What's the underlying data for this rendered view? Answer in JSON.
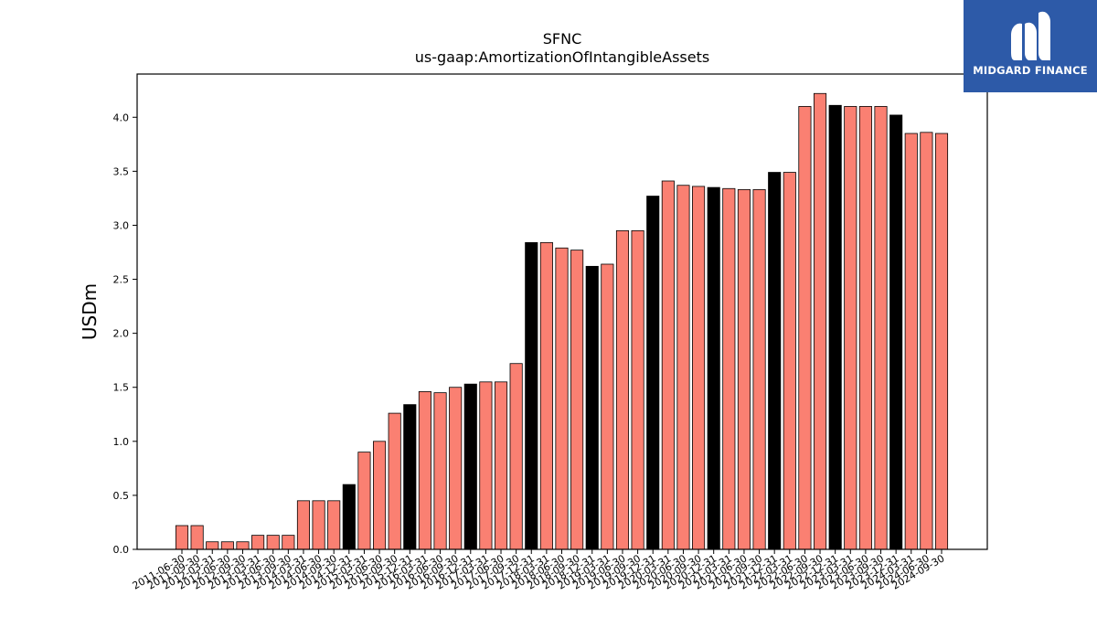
{
  "logo": {
    "text": "MIDGARD FINANCE"
  },
  "chart_data": {
    "type": "bar",
    "title": "SFNC",
    "subtitle": "us-gaap:AmortizationOfIntangibleAssets",
    "xlabel": "",
    "ylabel": "USDm",
    "ylim": [
      0,
      4.4
    ],
    "yticks": [
      "0.0",
      "0.5",
      "1.0",
      "1.5",
      "2.0",
      "2.5",
      "3.0",
      "3.5",
      "4.0"
    ],
    "grid": false,
    "colors": {
      "quarter": "#fa8072",
      "year_end": "#000000",
      "edge": "#000000"
    },
    "categories": [
      "2011-06-30",
      "2011-09-30",
      "2012-03-31",
      "2012-06-30",
      "2012-09-30",
      "2013-03-31",
      "2013-06-30",
      "2013-09-30",
      "2014-03-31",
      "2014-06-30",
      "2014-09-30",
      "2014-12-31",
      "2015-03-31",
      "2015-06-30",
      "2015-09-30",
      "2015-12-31",
      "2016-03-31",
      "2016-06-30",
      "2016-09-30",
      "2016-12-31",
      "2017-03-31",
      "2017-06-30",
      "2017-09-30",
      "2017-12-31",
      "2018-03-31",
      "2018-06-30",
      "2018-09-30",
      "2018-12-31",
      "2019-03-31",
      "2019-06-30",
      "2019-09-30",
      "2019-12-31",
      "2020-03-31",
      "2020-06-30",
      "2020-09-30",
      "2020-12-31",
      "2021-03-31",
      "2021-06-30",
      "2021-09-30",
      "2021-12-31",
      "2022-03-31",
      "2022-06-30",
      "2022-09-30",
      "2022-12-31",
      "2023-03-31",
      "2023-06-30",
      "2023-09-30",
      "2023-12-31",
      "2024-03-31",
      "2024-06-30",
      "2024-09-30"
    ],
    "xtick_labels": [
      "2011-06-30",
      "2011-09-30",
      "2012-03-31",
      "2012-06-30",
      "2012-09-30",
      "2013-03-31",
      "2013-06-30",
      "2013-09-30",
      "2014-03-31",
      "2014-06-30",
      "2014-09-30",
      "2014-12-31",
      "2015-03-31",
      "2015-06-30",
      "2015-09-30",
      "2015-12-31",
      "2016-03-31",
      "2016-06-30",
      "2016-09-30",
      "2016-12-31",
      "2017-03-31",
      "2017-06-30",
      "2017-09-30",
      "2017-12-31",
      "2018-03-31",
      "2018-06-30",
      "2018-09-30",
      "2018-12-31",
      "2019-03-31",
      "2019-06-30",
      "2019-09-30",
      "2019-12-31",
      "2020-03-31",
      "2020-06-30",
      "2020-09-30",
      "2020-12-31",
      "2021-03-31",
      "2021-06-30",
      "2021-09-30",
      "2021-12-31",
      "2022-03-31",
      "2022-06-30",
      "2022-09-30",
      "2022-12-31",
      "2023-03-31",
      "2023-06-30",
      "2023-09-30",
      "2023-12-31",
      "2024-03-31",
      "2024-06-30",
      "2024-09-30"
    ],
    "values": [
      0.22,
      0.22,
      0.07,
      0.07,
      0.07,
      0.13,
      0.13,
      0.13,
      0.45,
      0.45,
      0.45,
      0.6,
      0.9,
      1.0,
      1.26,
      1.34,
      1.46,
      1.45,
      1.5,
      1.53,
      1.55,
      1.55,
      1.72,
      2.84,
      2.84,
      2.79,
      2.77,
      2.62,
      2.64,
      2.95,
      2.95,
      3.27,
      3.41,
      3.37,
      3.36,
      3.35,
      3.34,
      3.33,
      3.33,
      3.49,
      3.49,
      4.1,
      4.22,
      4.11,
      4.1,
      4.1,
      4.1,
      4.02,
      3.85,
      3.86,
      3.85
    ],
    "year_end": [
      false,
      false,
      false,
      false,
      false,
      false,
      false,
      false,
      false,
      false,
      false,
      true,
      false,
      false,
      false,
      true,
      false,
      false,
      false,
      true,
      false,
      false,
      false,
      true,
      false,
      false,
      false,
      true,
      false,
      false,
      false,
      true,
      false,
      false,
      false,
      true,
      false,
      false,
      false,
      true,
      false,
      false,
      false,
      true,
      false,
      false,
      false,
      true,
      false,
      false,
      false
    ]
  }
}
